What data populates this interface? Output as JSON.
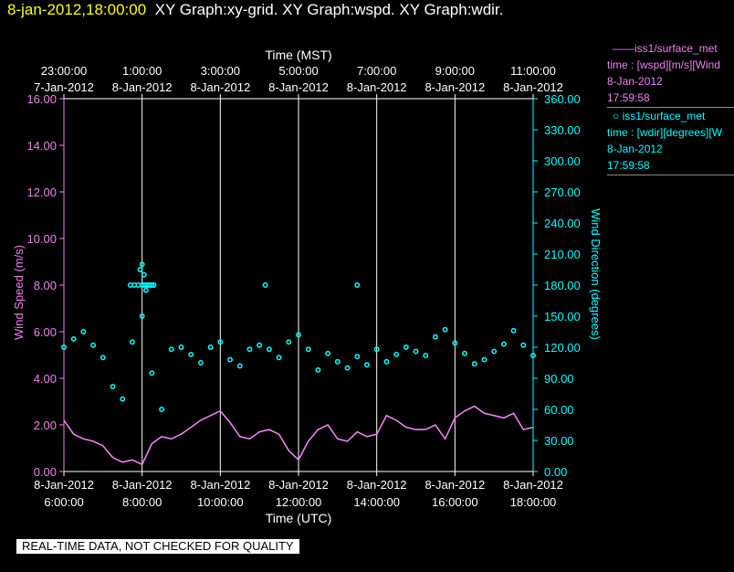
{
  "header": {
    "timestamp": "8-jan-2012,18:00:00",
    "title": "XY Graph:xy-grid.  XY Graph:wspd.  XY Graph:wdir."
  },
  "legend": [
    {
      "marker": "——",
      "name": "iss1/surface_met",
      "expr": "time : [wspd][m/s][Wind",
      "date": "8-Jan-2012",
      "time": "17:59:58",
      "color": "#ee82ee"
    },
    {
      "marker": "○",
      "name": "iss1/surface_met",
      "expr": "time : [wdir][degrees][W",
      "date": "8-Jan-2012",
      "time": "17:59:58",
      "color": "#00ffff"
    }
  ],
  "footer": "REAL-TIME DATA, NOT CHECKED FOR QUALITY",
  "chart_data": {
    "type": "line",
    "xlabel_bottom": "Time (UTC)",
    "xlabel_top": "Time (MST)",
    "ylabel_left": "Wind Speed (m/s)",
    "ylabel_right": "Wind Direction (degrees)",
    "xlim": [
      6,
      18
    ],
    "ylim_left": [
      0,
      16
    ],
    "ylim_right": [
      0,
      360
    ],
    "grid": "vertical",
    "bottom_ticks": [
      {
        "x": 6,
        "date": "8-Jan-2012",
        "time": "6:00:00"
      },
      {
        "x": 8,
        "date": "8-Jan-2012",
        "time": "8:00:00"
      },
      {
        "x": 10,
        "date": "8-Jan-2012",
        "time": "10:00:00"
      },
      {
        "x": 12,
        "date": "8-Jan-2012",
        "time": "12:00:00"
      },
      {
        "x": 14,
        "date": "8-Jan-2012",
        "time": "14:00:00"
      },
      {
        "x": 16,
        "date": "8-Jan-2012",
        "time": "16:00:00"
      },
      {
        "x": 18,
        "date": "8-Jan-2012",
        "time": "18:00:00"
      }
    ],
    "top_ticks": [
      {
        "x": 6,
        "time": "23:00:00",
        "date": "7-Jan-2012"
      },
      {
        "x": 8,
        "time": "1:00:00",
        "date": "8-Jan-2012"
      },
      {
        "x": 10,
        "time": "3:00:00",
        "date": "8-Jan-2012"
      },
      {
        "x": 12,
        "time": "5:00:00",
        "date": "8-Jan-2012"
      },
      {
        "x": 14,
        "time": "7:00:00",
        "date": "8-Jan-2012"
      },
      {
        "x": 16,
        "time": "9:00:00",
        "date": "8-Jan-2012"
      },
      {
        "x": 18,
        "time": "11:00:00",
        "date": "8-Jan-2012"
      }
    ],
    "left_ticks": [
      "0.00",
      "2.00",
      "4.00",
      "6.00",
      "8.00",
      "10.00",
      "12.00",
      "14.00",
      "16.00"
    ],
    "right_ticks": [
      "0.00",
      "30.00",
      "60.00",
      "90.00",
      "120.00",
      "150.00",
      "180.00",
      "210.00",
      "240.00",
      "270.00",
      "300.00",
      "330.00",
      "360.00"
    ],
    "series": [
      {
        "name": "iss1/surface_met wspd",
        "axis": "left",
        "style": "line",
        "color": "#ee82ee",
        "x": [
          6.0,
          6.25,
          6.5,
          6.75,
          7.0,
          7.25,
          7.5,
          7.75,
          8.0,
          8.25,
          8.5,
          8.75,
          9.0,
          9.25,
          9.5,
          9.75,
          10.0,
          10.25,
          10.5,
          10.75,
          11.0,
          11.25,
          11.5,
          11.75,
          12.0,
          12.25,
          12.5,
          12.75,
          13.0,
          13.25,
          13.5,
          13.75,
          14.0,
          14.25,
          14.5,
          14.75,
          15.0,
          15.25,
          15.5,
          15.75,
          16.0,
          16.25,
          16.5,
          16.75,
          17.0,
          17.25,
          17.5,
          17.75,
          18.0
        ],
        "y": [
          2.2,
          1.6,
          1.4,
          1.3,
          1.1,
          0.6,
          0.4,
          0.5,
          0.3,
          1.2,
          1.5,
          1.4,
          1.6,
          1.9,
          2.2,
          2.4,
          2.6,
          2.1,
          1.5,
          1.4,
          1.7,
          1.8,
          1.6,
          0.9,
          0.5,
          1.3,
          1.8,
          2.0,
          1.4,
          1.3,
          1.7,
          1.5,
          1.6,
          2.4,
          2.2,
          1.9,
          1.8,
          1.8,
          2.0,
          1.4,
          2.3,
          2.6,
          2.8,
          2.5,
          2.4,
          2.3,
          2.5,
          1.8,
          1.9
        ]
      },
      {
        "name": "iss1/surface_met wdir",
        "axis": "right",
        "style": "markers",
        "color": "#00ffff",
        "x": [
          6.0,
          6.25,
          6.5,
          6.75,
          7.0,
          7.25,
          7.5,
          7.75,
          8.0,
          8.25,
          8.5,
          8.75,
          9.0,
          9.25,
          9.5,
          9.75,
          10.0,
          10.25,
          10.5,
          10.75,
          11.0,
          11.25,
          11.5,
          11.75,
          12.0,
          12.25,
          12.5,
          12.75,
          13.0,
          13.25,
          13.5,
          13.75,
          14.0,
          14.25,
          14.5,
          14.75,
          15.0,
          15.25,
          15.5,
          15.75,
          16.0,
          16.25,
          16.5,
          16.75,
          17.0,
          17.25,
          17.5,
          17.75,
          18.0
        ],
        "y": [
          120,
          128,
          135,
          122,
          110,
          82,
          70,
          125,
          150,
          95,
          60,
          118,
          120,
          113,
          105,
          120,
          125,
          108,
          102,
          118,
          122,
          118,
          110,
          125,
          132,
          118,
          98,
          114,
          106,
          100,
          111,
          103,
          118,
          106,
          113,
          120,
          116,
          112,
          130,
          137,
          124,
          114,
          104,
          108,
          116,
          123,
          136,
          122,
          112
        ]
      },
      {
        "name": "wdir outliers",
        "axis": "right",
        "style": "markers",
        "color": "#00ffff",
        "x": [
          7.7,
          7.8,
          7.9,
          8.0,
          8.05,
          8.1,
          8.15,
          8.2,
          8.25,
          8.3,
          7.95,
          8.0,
          8.05,
          8.1,
          11.15,
          13.5
        ],
        "y": [
          180,
          180,
          180,
          180,
          180,
          180,
          180,
          180,
          180,
          180,
          195,
          200,
          190,
          175,
          180,
          180
        ]
      }
    ]
  }
}
